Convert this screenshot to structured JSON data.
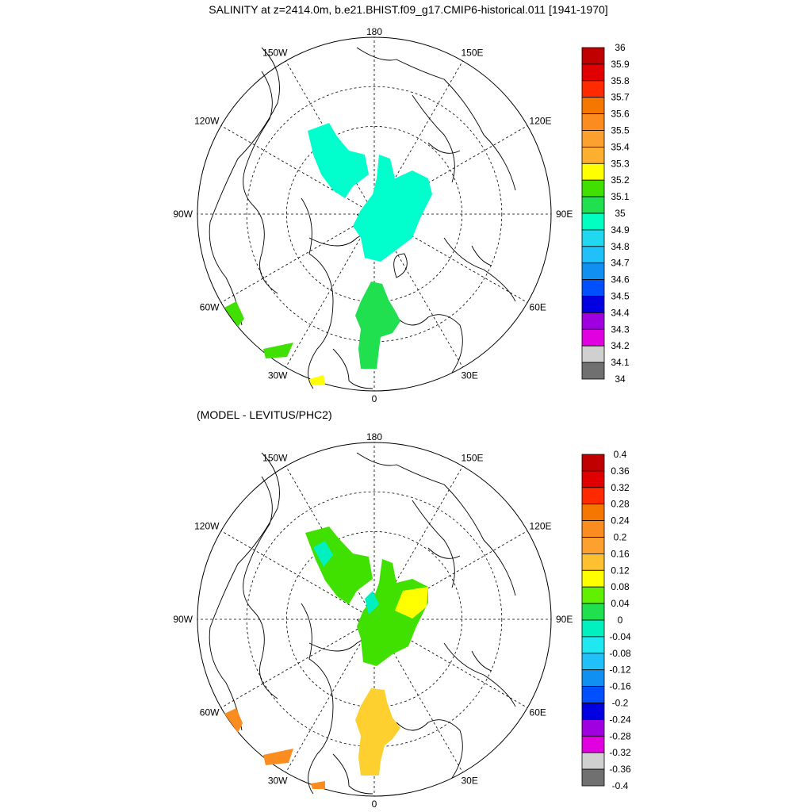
{
  "title": "SALINITY at z=2414.0m, b.e21.BHIST.f09_g17.CMIP6-historical.011 [1941-1970]",
  "subtitle": "(MODEL - LEVITUS/PHC2)",
  "lon_labels": [
    "180",
    "150E",
    "120E",
    "90E",
    "60E",
    "30E",
    "0",
    "30W",
    "60W",
    "90W",
    "120W",
    "150W"
  ],
  "maps": [
    {
      "id": "salinity",
      "colorbar_labels": [
        "36",
        "35.9",
        "35.8",
        "35.7",
        "35.6",
        "35.5",
        "35.4",
        "35.3",
        "35.2",
        "35.1",
        "35",
        "34.9",
        "34.8",
        "34.7",
        "34.6",
        "34.5",
        "34.4",
        "34.3",
        "34.2",
        "34.1",
        "34"
      ],
      "colorbar_colors": [
        "#c00000",
        "#e00000",
        "#ff2a00",
        "#f57700",
        "#fb8c20",
        "#fca030",
        "#fdb030",
        "#ffff00",
        "#40e000",
        "#20e050",
        "#00ffc0",
        "#20d8f0",
        "#20c0f8",
        "#1090f0",
        "#0050ff",
        "#0000e0",
        "#a000e0",
        "#e000e0",
        "#d0d0d0",
        "#707070"
      ]
    },
    {
      "id": "difference",
      "colorbar_labels": [
        "0.4",
        "0.36",
        "0.32",
        "0.28",
        "0.24",
        "0.2",
        "0.16",
        "0.12",
        "0.08",
        "0.04",
        "0",
        "-0.04",
        "-0.08",
        "-0.12",
        "-0.16",
        "-0.2",
        "-0.24",
        "-0.28",
        "-0.32",
        "-0.36",
        "-0.4"
      ],
      "colorbar_colors": [
        "#c00000",
        "#e00000",
        "#ff2a00",
        "#f57700",
        "#fb8c20",
        "#fca030",
        "#fdc030",
        "#ffff00",
        "#60f000",
        "#20e050",
        "#00f0c0",
        "#20e8f0",
        "#20c0f8",
        "#1090f0",
        "#0050ff",
        "#0000e0",
        "#a000e0",
        "#e000e0",
        "#d0d0d0",
        "#707070"
      ]
    }
  ]
}
